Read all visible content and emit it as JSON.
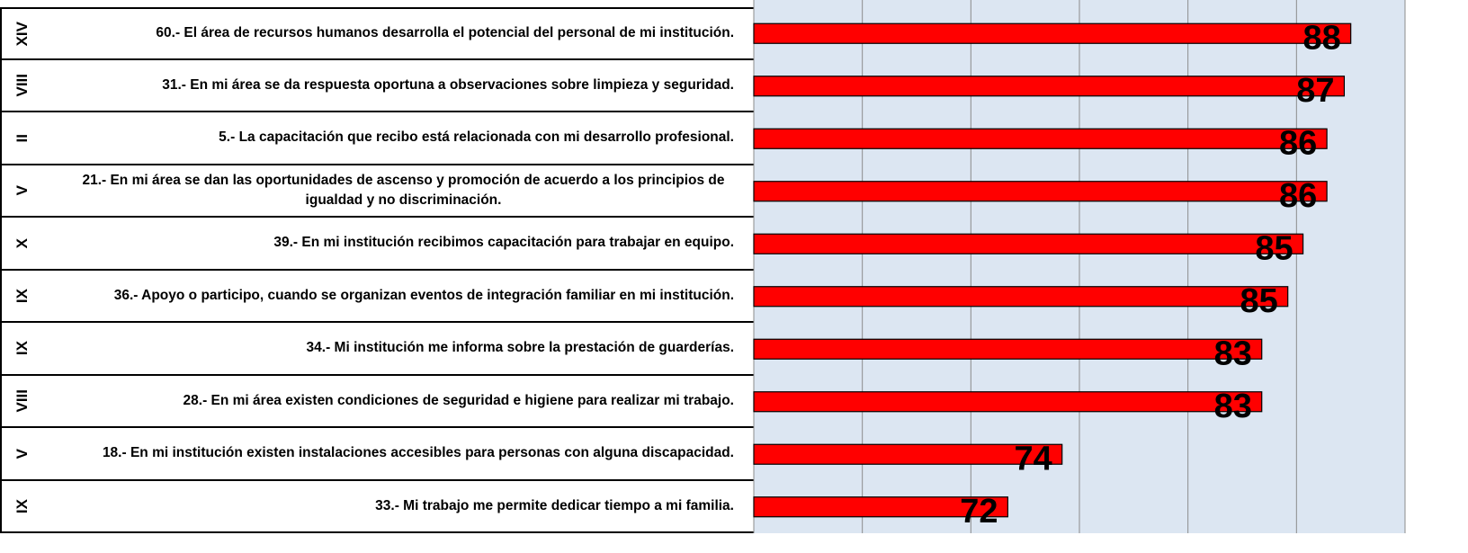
{
  "chart_data": {
    "type": "bar",
    "orientation": "horizontal",
    "row_groups": [
      "XIV",
      "VIII",
      "II",
      "V",
      "X",
      "IX",
      "IX",
      "VIII",
      "V",
      "IX"
    ],
    "categories": [
      "60.- El área de recursos humanos desarrolla el potencial del personal de mi institución.",
      "31.- En mi área se da respuesta oportuna a observaciones sobre limpieza y seguridad.",
      "5.- La capacitación que recibo está relacionada con mi desarrollo profesional.",
      "21.- En mi área se dan las oportunidades de ascenso y promoción de acuerdo a los principios de igualdad y no discriminación.",
      "39.- En mi institución recibimos capacitación para trabajar en equipo.",
      "36.- Apoyo o participo, cuando se organizan eventos de integración familiar en mi institución.",
      "34.- Mi institución me informa sobre la prestación de guarderías.",
      "28.- En mi área existen condiciones de seguridad e higiene para realizar mi trabajo.",
      "18.- En mi institución existen instalaciones accesibles para personas con alguna discapacidad.",
      "33.- Mi trabajo me permite dedicar tiempo a mi familia."
    ],
    "values": [
      87.5,
      87.2,
      86.4,
      86.4,
      85.3,
      84.6,
      83.4,
      83.4,
      74.2,
      71.7
    ],
    "value_labels": [
      "88",
      "87",
      "86",
      "86",
      "85",
      "85",
      "83",
      "83",
      "74",
      "72"
    ],
    "color": "#ff0000",
    "xlim": [
      60,
      90
    ],
    "xticks": [
      60,
      65,
      70,
      75,
      80,
      85,
      90
    ],
    "grid": true
  }
}
